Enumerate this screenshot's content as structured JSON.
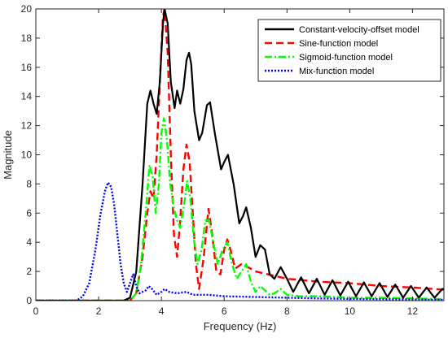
{
  "chart_data": {
    "type": "line",
    "xlabel": "Frequency (Hz)",
    "ylabel": "Magnitude",
    "xlim": [
      0,
      13
    ],
    "ylim": [
      0,
      20
    ],
    "x_ticks": [
      0,
      2,
      4,
      6,
      8,
      10,
      12
    ],
    "y_ticks": [
      0,
      2,
      4,
      6,
      8,
      10,
      12,
      14,
      16,
      18,
      20
    ],
    "grid": false,
    "legend_position": "top-right",
    "series": [
      {
        "name": "Constant-velocity-offset model",
        "color": "#000000",
        "dash": "solid",
        "points": [
          [
            0,
            0
          ],
          [
            2.8,
            0
          ],
          [
            3.0,
            0.2
          ],
          [
            3.2,
            2.0
          ],
          [
            3.4,
            8.0
          ],
          [
            3.55,
            13.5
          ],
          [
            3.65,
            14.4
          ],
          [
            3.75,
            13.5
          ],
          [
            3.85,
            12.8
          ],
          [
            3.95,
            15.0
          ],
          [
            4.05,
            19.0
          ],
          [
            4.1,
            20.0
          ],
          [
            4.2,
            19.0
          ],
          [
            4.3,
            15.0
          ],
          [
            4.42,
            13.2
          ],
          [
            4.5,
            14.4
          ],
          [
            4.6,
            13.5
          ],
          [
            4.7,
            14.5
          ],
          [
            4.8,
            16.5
          ],
          [
            4.88,
            17.0
          ],
          [
            4.95,
            16.2
          ],
          [
            5.05,
            13.0
          ],
          [
            5.2,
            11.0
          ],
          [
            5.3,
            11.5
          ],
          [
            5.45,
            13.4
          ],
          [
            5.55,
            13.6
          ],
          [
            5.7,
            11.5
          ],
          [
            5.9,
            9.0
          ],
          [
            6.0,
            9.5
          ],
          [
            6.12,
            10.0
          ],
          [
            6.3,
            8.0
          ],
          [
            6.48,
            5.3
          ],
          [
            6.6,
            5.8
          ],
          [
            6.7,
            6.4
          ],
          [
            6.85,
            5.0
          ],
          [
            7.0,
            3.0
          ],
          [
            7.15,
            3.8
          ],
          [
            7.3,
            3.5
          ],
          [
            7.45,
            1.8
          ],
          [
            7.6,
            1.5
          ],
          [
            7.8,
            2.3
          ],
          [
            8.0,
            1.5
          ],
          [
            8.2,
            0.6
          ],
          [
            8.45,
            1.6
          ],
          [
            8.7,
            0.5
          ],
          [
            8.95,
            1.5
          ],
          [
            9.2,
            0.4
          ],
          [
            9.45,
            1.4
          ],
          [
            9.7,
            0.35
          ],
          [
            9.95,
            1.3
          ],
          [
            10.2,
            0.3
          ],
          [
            10.45,
            1.25
          ],
          [
            10.7,
            0.3
          ],
          [
            10.95,
            1.2
          ],
          [
            11.2,
            0.25
          ],
          [
            11.45,
            1.1
          ],
          [
            11.7,
            0.2
          ],
          [
            11.95,
            1.0
          ],
          [
            12.2,
            0.2
          ],
          [
            12.45,
            0.9
          ],
          [
            12.7,
            0.2
          ],
          [
            12.95,
            0.8
          ],
          [
            13.0,
            0.8
          ]
        ]
      },
      {
        "name": "Sine-function model",
        "color": "#ff0000",
        "dash": "dashed",
        "points": [
          [
            0,
            0
          ],
          [
            3.0,
            0
          ],
          [
            3.2,
            0.5
          ],
          [
            3.4,
            3.0
          ],
          [
            3.55,
            6.0
          ],
          [
            3.65,
            7.5
          ],
          [
            3.75,
            7.0
          ],
          [
            3.85,
            10.0
          ],
          [
            3.95,
            15.0
          ],
          [
            4.05,
            19.5
          ],
          [
            4.1,
            20.0
          ],
          [
            4.2,
            17.0
          ],
          [
            4.3,
            10.0
          ],
          [
            4.4,
            4.5
          ],
          [
            4.5,
            3.0
          ],
          [
            4.6,
            5.5
          ],
          [
            4.7,
            9.0
          ],
          [
            4.8,
            10.7
          ],
          [
            4.9,
            9.5
          ],
          [
            5.0,
            6.0
          ],
          [
            5.1,
            2.5
          ],
          [
            5.2,
            0.8
          ],
          [
            5.35,
            3.0
          ],
          [
            5.5,
            6.3
          ],
          [
            5.62,
            4.5
          ],
          [
            5.75,
            2.0
          ],
          [
            5.88,
            1.8
          ],
          [
            6.0,
            3.5
          ],
          [
            6.1,
            4.2
          ],
          [
            6.2,
            3.5
          ],
          [
            6.35,
            2.2
          ],
          [
            6.55,
            2.5
          ],
          [
            6.75,
            2.3
          ],
          [
            7.0,
            2.0
          ],
          [
            7.4,
            1.8
          ],
          [
            8.0,
            1.5
          ],
          [
            8.5,
            1.4
          ],
          [
            9.0,
            1.3
          ],
          [
            10.0,
            1.2
          ],
          [
            11.0,
            1.0
          ],
          [
            12.0,
            0.9
          ],
          [
            13.0,
            0.75
          ]
        ]
      },
      {
        "name": "Sigmoid-function model",
        "color": "#00ff00",
        "dash": "dashdot",
        "points": [
          [
            0,
            0
          ],
          [
            3.0,
            0
          ],
          [
            3.2,
            0.5
          ],
          [
            3.35,
            2.5
          ],
          [
            3.5,
            6.0
          ],
          [
            3.62,
            9.3
          ],
          [
            3.72,
            8.5
          ],
          [
            3.82,
            6.0
          ],
          [
            3.92,
            8.0
          ],
          [
            4.0,
            11.5
          ],
          [
            4.08,
            12.5
          ],
          [
            4.18,
            11.0
          ],
          [
            4.28,
            8.0
          ],
          [
            4.4,
            6.3
          ],
          [
            4.5,
            5.5
          ],
          [
            4.6,
            5.0
          ],
          [
            4.72,
            6.5
          ],
          [
            4.82,
            8.2
          ],
          [
            4.92,
            7.0
          ],
          [
            5.05,
            4.0
          ],
          [
            5.15,
            2.5
          ],
          [
            5.28,
            3.5
          ],
          [
            5.4,
            5.5
          ],
          [
            5.52,
            5.5
          ],
          [
            5.65,
            4.0
          ],
          [
            5.8,
            2.5
          ],
          [
            5.95,
            3.5
          ],
          [
            6.1,
            4.0
          ],
          [
            6.25,
            2.5
          ],
          [
            6.4,
            1.5
          ],
          [
            6.55,
            2.0
          ],
          [
            6.7,
            2.5
          ],
          [
            6.85,
            1.3
          ],
          [
            7.0,
            0.6
          ],
          [
            7.15,
            1.0
          ],
          [
            7.3,
            0.7
          ],
          [
            7.45,
            0.4
          ],
          [
            7.6,
            0.5
          ],
          [
            7.8,
            0.8
          ],
          [
            8.0,
            0.4
          ],
          [
            8.4,
            0.3
          ],
          [
            9.0,
            0.3
          ],
          [
            10.0,
            0.2
          ],
          [
            11.0,
            0.2
          ],
          [
            12.0,
            0.15
          ],
          [
            13.0,
            0.1
          ]
        ]
      },
      {
        "name": "Mix-function model",
        "color": "#0000ff",
        "dash": "dotted",
        "points": [
          [
            0,
            0
          ],
          [
            1.3,
            0
          ],
          [
            1.5,
            0.3
          ],
          [
            1.7,
            1.2
          ],
          [
            1.9,
            3.5
          ],
          [
            2.05,
            5.8
          ],
          [
            2.2,
            7.5
          ],
          [
            2.3,
            8.1
          ],
          [
            2.4,
            7.8
          ],
          [
            2.5,
            6.5
          ],
          [
            2.6,
            4.5
          ],
          [
            2.7,
            2.5
          ],
          [
            2.8,
            1.2
          ],
          [
            2.9,
            0.6
          ],
          [
            3.0,
            1.2
          ],
          [
            3.1,
            1.8
          ],
          [
            3.2,
            1.0
          ],
          [
            3.3,
            0.5
          ],
          [
            3.5,
            0.7
          ],
          [
            3.6,
            1.0
          ],
          [
            3.7,
            0.8
          ],
          [
            3.85,
            0.4
          ],
          [
            4.0,
            0.6
          ],
          [
            4.1,
            0.8
          ],
          [
            4.25,
            0.6
          ],
          [
            4.5,
            0.5
          ],
          [
            4.8,
            0.6
          ],
          [
            5.0,
            0.4
          ],
          [
            5.5,
            0.4
          ],
          [
            6.0,
            0.3
          ],
          [
            7.0,
            0.25
          ],
          [
            8.0,
            0.2
          ],
          [
            9.0,
            0.15
          ],
          [
            10.0,
            0.12
          ],
          [
            11.0,
            0.1
          ],
          [
            12.0,
            0.08
          ],
          [
            13.0,
            0.05
          ]
        ]
      }
    ]
  }
}
